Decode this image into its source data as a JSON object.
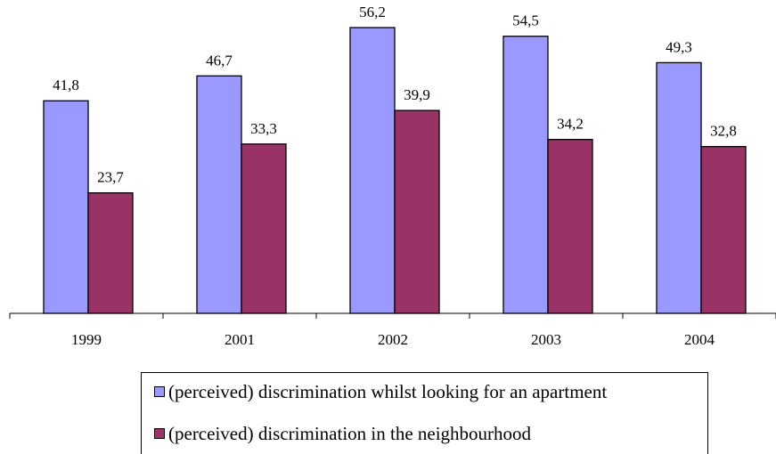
{
  "chart_data": {
    "type": "bar",
    "categories": [
      "1999",
      "2001",
      "2002",
      "2003",
      "2004"
    ],
    "series": [
      {
        "name": "(perceived) discrimination whilst looking for an apartment",
        "values": [
          41.8,
          46.7,
          56.2,
          54.5,
          49.3
        ],
        "value_labels": [
          "41,8",
          "46,7",
          "56,2",
          "54,5",
          "49,3"
        ],
        "color": "#9999ff"
      },
      {
        "name": "(perceived) discrimination in the neighbourhood",
        "values": [
          23.7,
          33.3,
          39.9,
          34.2,
          32.8
        ],
        "value_labels": [
          "23,7",
          "33,3",
          "39,9",
          "34,2",
          "32,8"
        ],
        "color": "#993366"
      }
    ],
    "title": "",
    "xlabel": "",
    "ylabel": "",
    "ylim": [
      0,
      60
    ],
    "grid": false,
    "legend_position": "bottom"
  },
  "legend": {
    "items": [
      {
        "label": "(perceived) discrimination whilst looking for an apartment",
        "color": "#9999ff"
      },
      {
        "label": "(perceived) discrimination in the neighbourhood",
        "color": "#993366"
      }
    ]
  }
}
